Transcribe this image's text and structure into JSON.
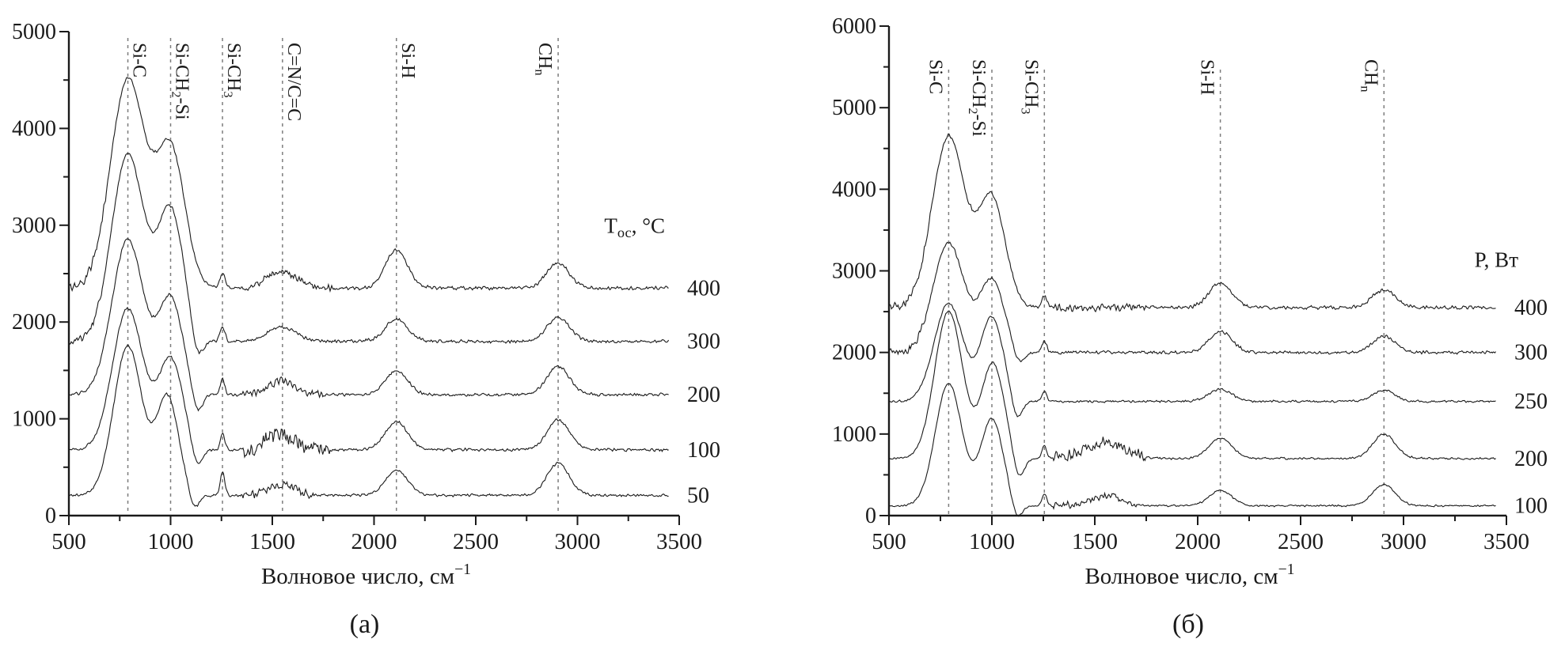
{
  "page": {
    "background": "#ffffff",
    "ink": "#1a1a1a",
    "dash_color": "#7d7d7d"
  },
  "chart_data": [
    {
      "type": "line",
      "caption": "(а)",
      "title": "",
      "xlabel_segments": [
        {
          "t": "Волновое число, см"
        },
        {
          "t": "−1",
          "sup": true
        }
      ],
      "ylabel": "",
      "xlim": [
        500,
        3500
      ],
      "ylim": [
        0,
        5000
      ],
      "x_ticks": [
        500,
        1000,
        1500,
        2000,
        2500,
        3000,
        3500
      ],
      "y_ticks": [
        0,
        1000,
        2000,
        3000,
        4000,
        5000
      ],
      "x_minor_step": 250,
      "y_minor_step": 500,
      "grid": false,
      "legend_position": "right",
      "legend_title_segments": [
        {
          "t": "T"
        },
        {
          "t": "ос",
          "sub": true
        },
        {
          "t": ", °C"
        }
      ],
      "legend_title_pos": {
        "y_value": 2920,
        "dx": -18
      },
      "annotation_line_dy": 8,
      "annotation_label_dy": 14,
      "annotations": [
        {
          "name": "si-c",
          "x": 790,
          "side": "right",
          "segments": [
            {
              "t": "Si-C"
            }
          ]
        },
        {
          "name": "si-ch2-si",
          "x": 1000,
          "side": "right",
          "segments": [
            {
              "t": "Si-CH"
            },
            {
              "t": "2",
              "sub": true
            },
            {
              "t": "-Si"
            }
          ]
        },
        {
          "name": "si-ch3",
          "x": 1255,
          "side": "right",
          "segments": [
            {
              "t": "Si-CH"
            },
            {
              "t": "3",
              "sub": true
            }
          ]
        },
        {
          "name": "c-n-c-c",
          "x": 1550,
          "side": "right",
          "segments": [
            {
              "t": "C=N/C=C"
            }
          ]
        },
        {
          "name": "si-h",
          "x": 2110,
          "side": "right",
          "segments": [
            {
              "t": "Si-H"
            }
          ]
        },
        {
          "name": "ch-n",
          "x": 2905,
          "side": "left",
          "segments": [
            {
              "t": "CH"
            },
            {
              "t": "n",
              "sub": true
            }
          ]
        }
      ],
      "series": [
        {
          "name": "400",
          "baseline": 2350,
          "noise": 22,
          "seed": 3,
          "peaks": [
            [
              790,
              2150,
              85
            ],
            [
              1000,
              1420,
              70
            ],
            [
              1255,
              160,
              12
            ],
            [
              1545,
              180,
              70
            ],
            [
              2110,
              390,
              55
            ],
            [
              2905,
              260,
              55
            ]
          ],
          "noisy_regions": [
            [
              500,
              680,
              30
            ],
            [
              1350,
              1800,
              22
            ]
          ]
        },
        {
          "name": "300",
          "baseline": 1800,
          "noise": 20,
          "seed": 7,
          "peaks": [
            [
              790,
              1930,
              80
            ],
            [
              1000,
              1340,
              65
            ],
            [
              1130,
              -260,
              28
            ],
            [
              1255,
              150,
              12
            ],
            [
              1545,
              150,
              70
            ],
            [
              2110,
              230,
              55
            ],
            [
              2905,
              250,
              55
            ]
          ],
          "noisy_regions": [
            [
              500,
              660,
              28
            ]
          ]
        },
        {
          "name": "200",
          "baseline": 1250,
          "noise": 18,
          "seed": 13,
          "peaks": [
            [
              790,
              1600,
              78
            ],
            [
              1000,
              980,
              60
            ],
            [
              1130,
              -230,
              26
            ],
            [
              1255,
              160,
              11
            ],
            [
              1545,
              140,
              65
            ],
            [
              2110,
              240,
              55
            ],
            [
              2905,
              290,
              55
            ]
          ],
          "noisy_regions": [
            [
              1350,
              1750,
              28
            ]
          ]
        },
        {
          "name": "100",
          "baseline": 680,
          "noise": 18,
          "seed": 21,
          "peaks": [
            [
              790,
              1460,
              75
            ],
            [
              1000,
              930,
              60
            ],
            [
              1130,
              -220,
              26
            ],
            [
              1255,
              170,
              11
            ],
            [
              1545,
              160,
              70
            ],
            [
              2110,
              290,
              55
            ],
            [
              2905,
              310,
              55
            ]
          ],
          "noisy_regions": [
            [
              1350,
              1780,
              85
            ]
          ]
        },
        {
          "name": "50",
          "baseline": 210,
          "noise": 16,
          "seed": 29,
          "peaks": [
            [
              790,
              1540,
              70
            ],
            [
              985,
              1010,
              55
            ],
            [
              1115,
              -160,
              25
            ],
            [
              1255,
              240,
              11
            ],
            [
              1545,
              110,
              65
            ],
            [
              2110,
              260,
              55
            ],
            [
              2905,
              330,
              55
            ]
          ],
          "noisy_regions": [
            [
              1350,
              1700,
              35
            ]
          ]
        }
      ]
    },
    {
      "type": "line",
      "caption": "(б)",
      "title": "",
      "xlabel_segments": [
        {
          "t": "Волновое число, см"
        },
        {
          "t": "−1",
          "sup": true
        }
      ],
      "ylabel": "",
      "xlim": [
        500,
        3500
      ],
      "ylim": [
        0,
        6000
      ],
      "x_ticks": [
        500,
        1000,
        1500,
        2000,
        2500,
        3000,
        3500
      ],
      "y_ticks": [
        0,
        1000,
        2000,
        3000,
        4000,
        5000,
        6000
      ],
      "x_minor_step": 250,
      "y_minor_step": 500,
      "grid": false,
      "legend_position": "right",
      "legend_title_segments": [
        {
          "t": "P, Вт"
        }
      ],
      "legend_title_pos": {
        "y_value": 3050,
        "dx": 15
      },
      "annotation_line_dy": 55,
      "annotation_label_dy": 42,
      "annotations": [
        {
          "name": "si-c",
          "x": 790,
          "side": "left",
          "segments": [
            {
              "t": "Si-C"
            }
          ]
        },
        {
          "name": "si-ch2-si",
          "x": 1000,
          "side": "left",
          "segments": [
            {
              "t": "Si-CH"
            },
            {
              "t": "2",
              "sub": true
            },
            {
              "t": "-Si"
            }
          ]
        },
        {
          "name": "si-ch3",
          "x": 1255,
          "side": "left",
          "segments": [
            {
              "t": "Si-CH"
            },
            {
              "t": "3",
              "sub": true
            }
          ]
        },
        {
          "name": "si-h",
          "x": 2110,
          "side": "left",
          "segments": [
            {
              "t": "Si-H"
            }
          ]
        },
        {
          "name": "ch-n",
          "x": 2905,
          "side": "left",
          "segments": [
            {
              "t": "CH"
            },
            {
              "t": "n",
              "sub": true
            }
          ]
        }
      ],
      "series": [
        {
          "name": "400",
          "baseline": 2550,
          "noise": 26,
          "seed": 41,
          "peaks": [
            [
              790,
              2100,
              80
            ],
            [
              1000,
              1330,
              65
            ],
            [
              1255,
              140,
              12
            ],
            [
              2110,
              300,
              55
            ],
            [
              2905,
              220,
              55
            ]
          ],
          "noisy_regions": [
            [
              500,
              700,
              40
            ],
            [
              1300,
              1750,
              30
            ]
          ]
        },
        {
          "name": "300",
          "baseline": 2000,
          "noise": 22,
          "seed": 47,
          "peaks": [
            [
              790,
              1340,
              75
            ],
            [
              1000,
              880,
              60
            ],
            [
              1130,
              -180,
              26
            ],
            [
              1255,
              140,
              12
            ],
            [
              2110,
              260,
              55
            ],
            [
              2905,
              200,
              55
            ]
          ],
          "noisy_regions": [
            [
              500,
              680,
              35
            ]
          ]
        },
        {
          "name": "250",
          "baseline": 1400,
          "noise": 16,
          "seed": 53,
          "peaks": [
            [
              790,
              1200,
              70
            ],
            [
              1000,
              1030,
              55
            ],
            [
              1120,
              -260,
              26
            ],
            [
              1255,
              120,
              11
            ],
            [
              2110,
              150,
              55
            ],
            [
              2905,
              140,
              50
            ]
          ],
          "noisy_regions": []
        },
        {
          "name": "200",
          "baseline": 700,
          "noise": 15,
          "seed": 61,
          "peaks": [
            [
              790,
              1800,
              68
            ],
            [
              1005,
              1160,
              55
            ],
            [
              1130,
              -280,
              26
            ],
            [
              1255,
              160,
              11
            ],
            [
              1550,
              200,
              90
            ],
            [
              2110,
              250,
              55
            ],
            [
              2905,
              300,
              55
            ]
          ],
          "noisy_regions": [
            [
              1300,
              1750,
              70
            ]
          ]
        },
        {
          "name": "100",
          "baseline": 120,
          "noise": 13,
          "seed": 67,
          "peaks": [
            [
              790,
              1500,
              65
            ],
            [
              1000,
              1060,
              55
            ],
            [
              1120,
              -200,
              25
            ],
            [
              1255,
              150,
              11
            ],
            [
              1550,
              120,
              80
            ],
            [
              2110,
              190,
              55
            ],
            [
              2905,
              260,
              55
            ]
          ],
          "noisy_regions": [
            [
              1300,
              1700,
              40
            ]
          ]
        }
      ]
    }
  ]
}
